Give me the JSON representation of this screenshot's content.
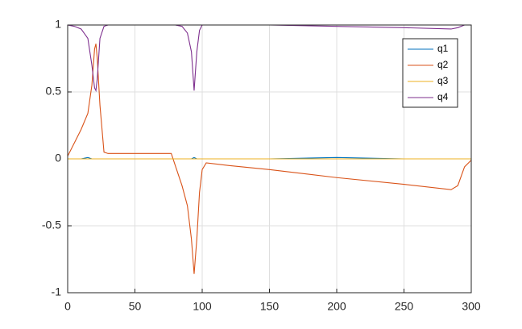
{
  "chart_data": {
    "type": "line",
    "x": [
      0,
      5,
      10,
      15,
      18,
      20,
      21,
      22,
      24,
      27,
      30,
      50,
      77,
      80,
      85,
      89,
      92,
      94,
      96,
      98,
      100,
      103,
      120,
      150,
      200,
      250,
      285,
      290,
      295,
      300
    ],
    "series": [
      {
        "name": "q1",
        "color": "#0072bd",
        "values": [
          0,
          0,
          0,
          0.01,
          0,
          0,
          0,
          0,
          0,
          0,
          0,
          0,
          0,
          0,
          0,
          0,
          0,
          0.01,
          0,
          0,
          0,
          0,
          0,
          0,
          0.01,
          0,
          0,
          0,
          0,
          0
        ]
      },
      {
        "name": "q2",
        "color": "#d95319",
        "values": [
          0.02,
          0.12,
          0.22,
          0.34,
          0.55,
          0.82,
          0.86,
          0.75,
          0.4,
          0.05,
          0.04,
          0.04,
          0.04,
          -0.05,
          -0.2,
          -0.35,
          -0.6,
          -0.86,
          -0.6,
          -0.25,
          -0.08,
          -0.03,
          -0.05,
          -0.08,
          -0.14,
          -0.19,
          -0.23,
          -0.2,
          -0.06,
          -0.01
        ]
      },
      {
        "name": "q3",
        "color": "#edb120",
        "values": [
          0,
          0,
          0,
          0,
          0,
          0,
          0,
          0,
          0,
          0,
          0,
          0,
          0,
          0,
          0,
          0,
          0,
          0,
          0,
          0,
          0,
          0,
          0,
          0,
          0,
          0,
          0,
          0,
          0,
          0
        ]
      },
      {
        "name": "q4",
        "color": "#7e2f8e",
        "values": [
          1,
          0.99,
          0.97,
          0.9,
          0.7,
          0.53,
          0.51,
          0.6,
          0.9,
          0.99,
          1,
          1,
          1,
          1,
          0.99,
          0.94,
          0.8,
          0.51,
          0.8,
          0.96,
          1,
          1,
          1,
          1,
          0.99,
          0.98,
          0.97,
          0.98,
          1,
          1
        ]
      }
    ],
    "xlim": [
      0,
      300
    ],
    "xticks": [
      0,
      50,
      100,
      150,
      200,
      250,
      300
    ],
    "ylim": [
      -1,
      1
    ],
    "yticks": [
      -1,
      -0.5,
      0,
      0.5,
      1
    ],
    "grid": true,
    "legend": "northeast"
  }
}
